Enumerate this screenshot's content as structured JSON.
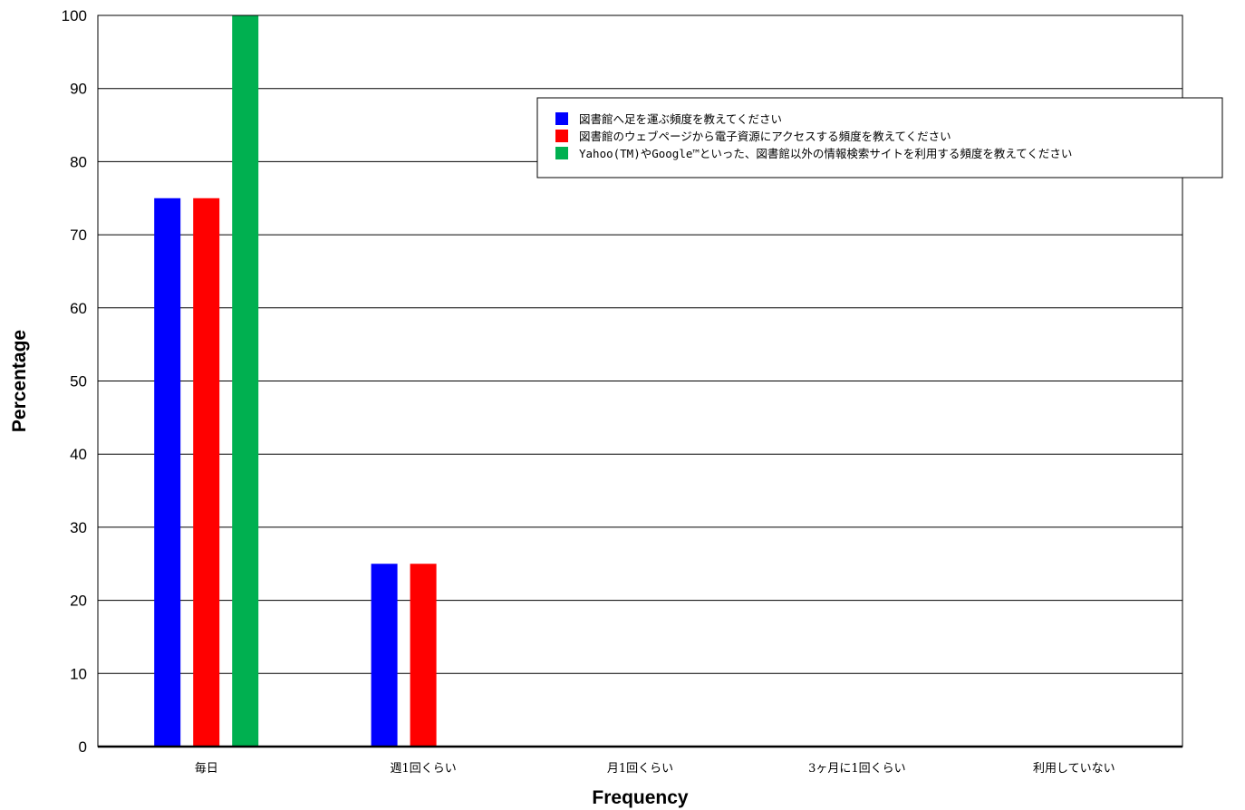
{
  "chart_data": {
    "type": "bar",
    "categories": [
      "毎日",
      "週1回くらい",
      "月1回くらい",
      "3ヶ月に1回くらい",
      "利用していない"
    ],
    "series": [
      {
        "name": "図書館へ足を運ぶ頻度を教えてください",
        "color": "#0000ff",
        "values": [
          75,
          25,
          0,
          0,
          0
        ]
      },
      {
        "name": "図書館のウェブページから電子資源にアクセスする頻度を教えてください",
        "color": "#ff0000",
        "values": [
          75,
          25,
          0,
          0,
          0
        ]
      },
      {
        "name": "Yahoo(TM)やGoogle™といった、図書館以外の情報検索サイトを利用する頻度を教えてください",
        "color": "#00b050",
        "values": [
          100,
          0,
          0,
          0,
          0
        ]
      }
    ],
    "xlabel": "Frequency",
    "ylabel": "Percentage",
    "ylim": [
      0,
      100
    ],
    "yticks": [
      0,
      10,
      20,
      30,
      40,
      50,
      60,
      70,
      80,
      90,
      100
    ],
    "grid": true,
    "legend_position": "top-right"
  }
}
